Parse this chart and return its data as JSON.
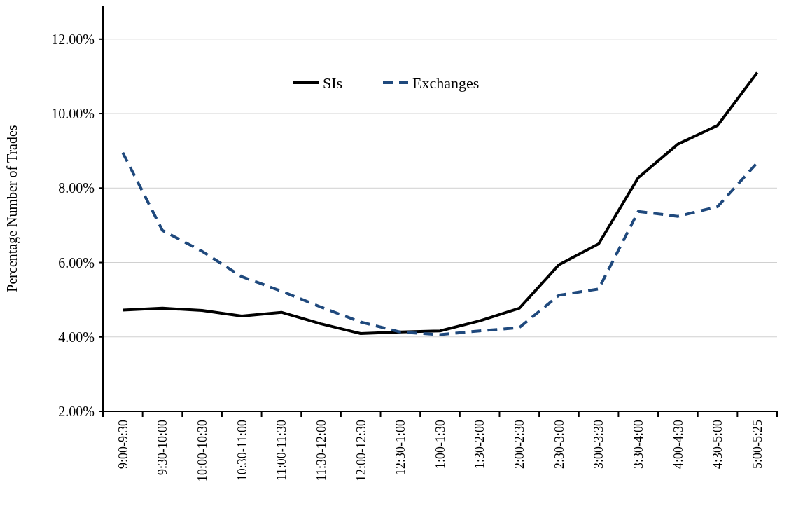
{
  "chart_data": {
    "type": "line",
    "ylabel": "Percentage Number of Trades",
    "categories": [
      "9:00-9:30",
      "9:30-10:00",
      "10:00-10:30",
      "10:30-11:00",
      "11:00-11:30",
      "11:30-12:00",
      "12:00-12:30",
      "12:30-1:00",
      "1:00-1:30",
      "1:30-2:00",
      "2:00-2:30",
      "2:30-3:00",
      "3:00-3:30",
      "3:30-4:00",
      "4:00-4:30",
      "4:30-5:00",
      "5:00-5:25"
    ],
    "series": [
      {
        "name": "SIs",
        "color": "#000000",
        "line_style": "solid",
        "values": [
          4.72,
          4.77,
          4.71,
          4.56,
          4.66,
          4.35,
          4.09,
          4.13,
          4.16,
          4.43,
          4.77,
          5.94,
          6.5,
          8.28,
          9.18,
          9.68,
          11.1
        ]
      },
      {
        "name": "Exchanges",
        "color": "#1f497d",
        "line_style": "dashed",
        "values": [
          8.95,
          6.86,
          6.3,
          5.62,
          5.23,
          4.8,
          4.4,
          4.13,
          4.06,
          4.16,
          4.25,
          5.12,
          5.29,
          7.37,
          7.24,
          7.5,
          8.68
        ]
      }
    ],
    "ylim": [
      2,
      12.9
    ],
    "yticks": [
      {
        "value": 2,
        "label": "2.00%"
      },
      {
        "value": 4,
        "label": "4.00%"
      },
      {
        "value": 6,
        "label": "6.00%"
      },
      {
        "value": 8,
        "label": "8.00%"
      },
      {
        "value": 10,
        "label": "10.00%"
      },
      {
        "value": 12,
        "label": "12.00%"
      }
    ],
    "grid": "y",
    "legend": "top",
    "marker": "none"
  }
}
